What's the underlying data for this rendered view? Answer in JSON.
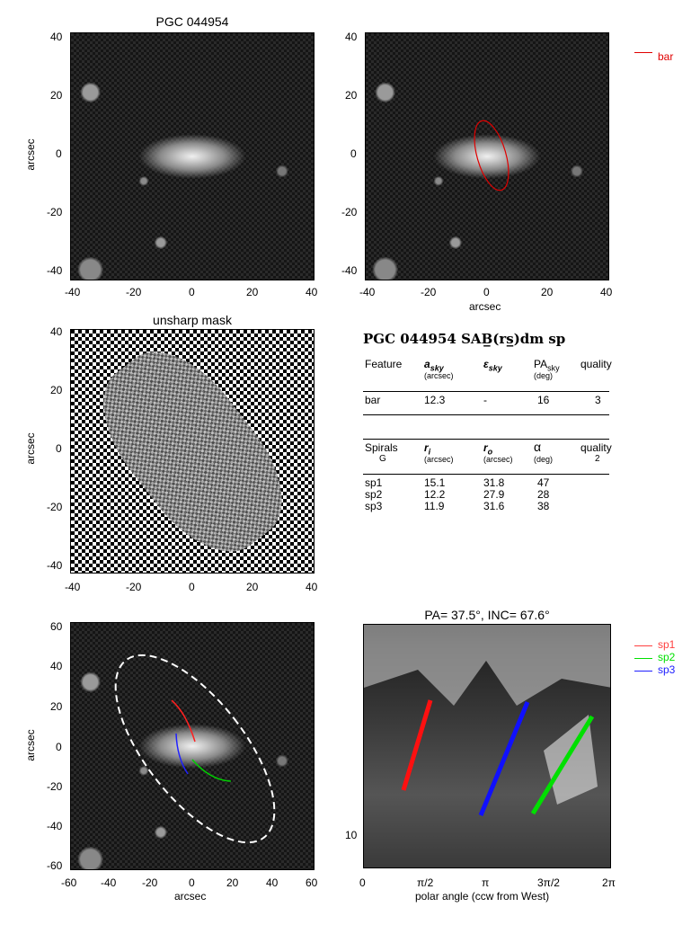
{
  "panel1": {
    "title": "PGC 044954",
    "ylabel": "arcsec",
    "xticks": [
      "-40",
      "-20",
      "0",
      "20",
      "40"
    ],
    "yticks": [
      "40",
      "20",
      "0",
      "-20",
      "-40"
    ]
  },
  "panel2": {
    "xlabel": "arcsec",
    "xticks": [
      "-40",
      "-20",
      "0",
      "20",
      "40"
    ],
    "yticks": [
      "40",
      "20",
      "0",
      "-20",
      "-40"
    ],
    "legend": "bar",
    "legend_color": "#e00000"
  },
  "panel3": {
    "title": "unsharp mask",
    "ylabel": "arcsec",
    "xticks": [
      "-40",
      "-20",
      "0",
      "20",
      "40"
    ],
    "yticks": [
      "40",
      "20",
      "0",
      "-20",
      "-40"
    ]
  },
  "info": {
    "heading": "PGC 044954  SAB̲(rs̲)dm sp",
    "bar_table": {
      "h_feature": "Feature",
      "h_a": "a",
      "h_a_sub": "sky",
      "h_a_unit": "(arcsec)",
      "h_eps": "ε",
      "h_eps_sub": "sky",
      "h_pa": "PA",
      "h_pa_sub": "sky",
      "h_pa_unit": "(deg)",
      "h_quality": "quality",
      "row": {
        "feature": "bar",
        "a": "12.3",
        "eps": "-",
        "pa": "16",
        "quality": "3"
      }
    },
    "spiral_table": {
      "h_spirals": "Spirals",
      "h_spirals_sub": "G",
      "h_ri": "r",
      "h_ri_sub": "i",
      "h_ri_unit": "(arcsec)",
      "h_ro": "r",
      "h_ro_sub": "o",
      "h_ro_unit": "(arcsec)",
      "h_alpha": "α",
      "h_alpha_unit": "(deg)",
      "h_quality": "quality",
      "h_quality_val": "2",
      "rows": [
        {
          "name": "sp1",
          "ri": "15.1",
          "ro": "31.8",
          "alpha": "47"
        },
        {
          "name": "sp2",
          "ri": "12.2",
          "ro": "27.9",
          "alpha": "28"
        },
        {
          "name": "sp3",
          "ri": "11.9",
          "ro": "31.6",
          "alpha": "38"
        }
      ]
    }
  },
  "panel4": {
    "xlabel": "arcsec",
    "ylabel": "arcsec",
    "xticks": [
      "-60",
      "-40",
      "-20",
      "0",
      "20",
      "40",
      "60"
    ],
    "yticks": [
      "60",
      "40",
      "20",
      "0",
      "-20",
      "-40",
      "-60"
    ]
  },
  "panel5": {
    "title": "PA=  37.5°, INC=  67.6°",
    "xlabel": "polar angle (ccw from West)",
    "xticks": [
      "0",
      "π/2",
      "π",
      "3π/2",
      "2π"
    ],
    "ytick": "10",
    "legend": [
      {
        "name": "sp1",
        "color": "#ff4040"
      },
      {
        "name": "sp2",
        "color": "#00e000"
      },
      {
        "name": "sp3",
        "color": "#2020ff"
      }
    ]
  }
}
